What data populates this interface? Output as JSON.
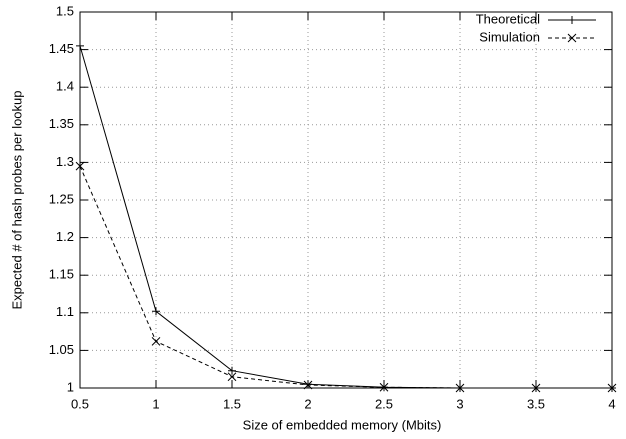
{
  "chart_data": {
    "type": "line",
    "xlabel": "Size of embedded memory (Mbits)",
    "ylabel": "Expected # of hash probes per lookup",
    "x": [
      0.5,
      1,
      1.5,
      2,
      2.5,
      3,
      3.5,
      4
    ],
    "series": [
      {
        "name": "Theoretical",
        "color": "#000000",
        "dash": false,
        "marker": "plus",
        "values": [
          1.455,
          1.102,
          1.023,
          1.005,
          1.001,
          1.0,
          1.0,
          1.0
        ]
      },
      {
        "name": "Simulation",
        "color": "#000000",
        "dash": true,
        "marker": "cross",
        "values": [
          1.295,
          1.062,
          1.015,
          1.004,
          1.001,
          1.0,
          1.0,
          1.0
        ]
      }
    ],
    "xlim": [
      0.5,
      4
    ],
    "xticks": [
      0.5,
      1,
      1.5,
      2,
      2.5,
      3,
      3.5,
      4
    ],
    "ylim": [
      1,
      1.5
    ],
    "yticks": [
      1,
      1.05,
      1.1,
      1.15,
      1.2,
      1.25,
      1.3,
      1.35,
      1.4,
      1.45,
      1.5
    ],
    "grid": true,
    "legend": "top-right"
  }
}
